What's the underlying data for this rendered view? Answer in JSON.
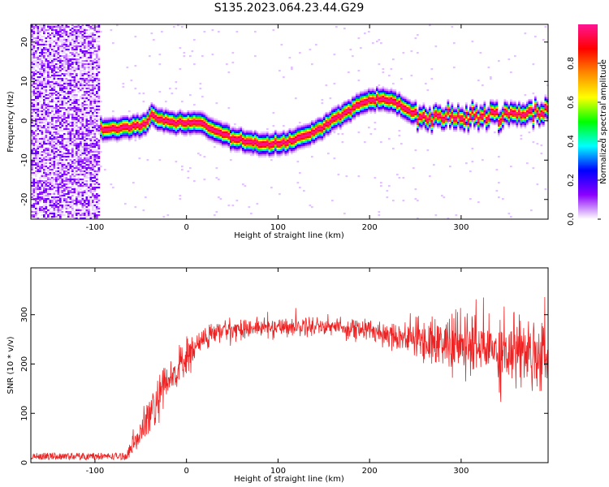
{
  "title": "S135.2023.064.23.44.G29",
  "chart_data": [
    {
      "type": "heatmap",
      "title": "",
      "xlabel": "Height of straight line (km)",
      "ylabel": "Frequency (Hz)",
      "xlim": [
        -170,
        395
      ],
      "ylim": [
        -25,
        24.5
      ],
      "x_ticks": [
        -100,
        0,
        100,
        200,
        300
      ],
      "y_ticks": [
        -20,
        -10,
        0,
        10,
        20
      ],
      "colorbar": {
        "label": "Normalized spectral amplitude",
        "range": [
          0.0,
          1.0
        ],
        "ticks": [
          0.0,
          0.2,
          0.4,
          0.6,
          0.8
        ],
        "colormap": [
          "#ffffff",
          "#8b00ff",
          "#0000ff",
          "#00ffff",
          "#00ff00",
          "#ffff00",
          "#ff8800",
          "#ff0000",
          "#ff1493"
        ]
      },
      "noise_region_x": [
        -170,
        -95
      ],
      "ridge": {
        "name": "",
        "points": [
          [
            -95,
            -2
          ],
          [
            -80,
            -2
          ],
          [
            -60,
            -1.5
          ],
          [
            -45,
            -1
          ],
          [
            -38,
            1.5
          ],
          [
            -30,
            0
          ],
          [
            -20,
            -0.5
          ],
          [
            0,
            -0.5
          ],
          [
            15,
            -0.5
          ],
          [
            30,
            -2.5
          ],
          [
            50,
            -4.5
          ],
          [
            70,
            -5.5
          ],
          [
            90,
            -6
          ],
          [
            110,
            -5.5
          ],
          [
            130,
            -4
          ],
          [
            150,
            -1.5
          ],
          [
            170,
            1.5
          ],
          [
            190,
            4.5
          ],
          [
            210,
            5.5
          ],
          [
            225,
            5
          ],
          [
            240,
            3
          ],
          [
            255,
            0.5
          ],
          [
            270,
            0
          ],
          [
            290,
            1
          ],
          [
            310,
            0.5
          ],
          [
            330,
            1
          ],
          [
            350,
            1.5
          ],
          [
            370,
            2
          ],
          [
            395,
            2.5
          ]
        ]
      }
    },
    {
      "type": "line",
      "title": "",
      "xlabel": "Height of straight line (km)",
      "ylabel": "SNR (10 * v/v)",
      "xlim": [
        -170,
        395
      ],
      "ylim": [
        0,
        395
      ],
      "x_ticks": [
        -100,
        0,
        100,
        200,
        300
      ],
      "y_ticks": [
        0,
        100,
        200,
        300
      ],
      "series": [
        {
          "name": "",
          "color": "#ee2222",
          "envelope": [
            [
              -170,
              10,
              10
            ],
            [
              -65,
              10,
              10
            ],
            [
              -60,
              30,
              15
            ],
            [
              -50,
              60,
              30
            ],
            [
              -40,
              95,
              40
            ],
            [
              -30,
              130,
              45
            ],
            [
              -20,
              160,
              45
            ],
            [
              -10,
              190,
              40
            ],
            [
              0,
              210,
              35
            ],
            [
              10,
              235,
              30
            ],
            [
              20,
              252,
              25
            ],
            [
              30,
              262,
              22
            ],
            [
              40,
              268,
              20
            ],
            [
              60,
              272,
              18
            ],
            [
              100,
              275,
              18
            ],
            [
              150,
              278,
              18
            ],
            [
              200,
              268,
              22
            ],
            [
              240,
              255,
              30
            ],
            [
              270,
              245,
              45
            ],
            [
              300,
              238,
              60
            ],
            [
              330,
              232,
              70
            ],
            [
              360,
              228,
              70
            ],
            [
              395,
              225,
              70
            ]
          ]
        }
      ]
    }
  ]
}
